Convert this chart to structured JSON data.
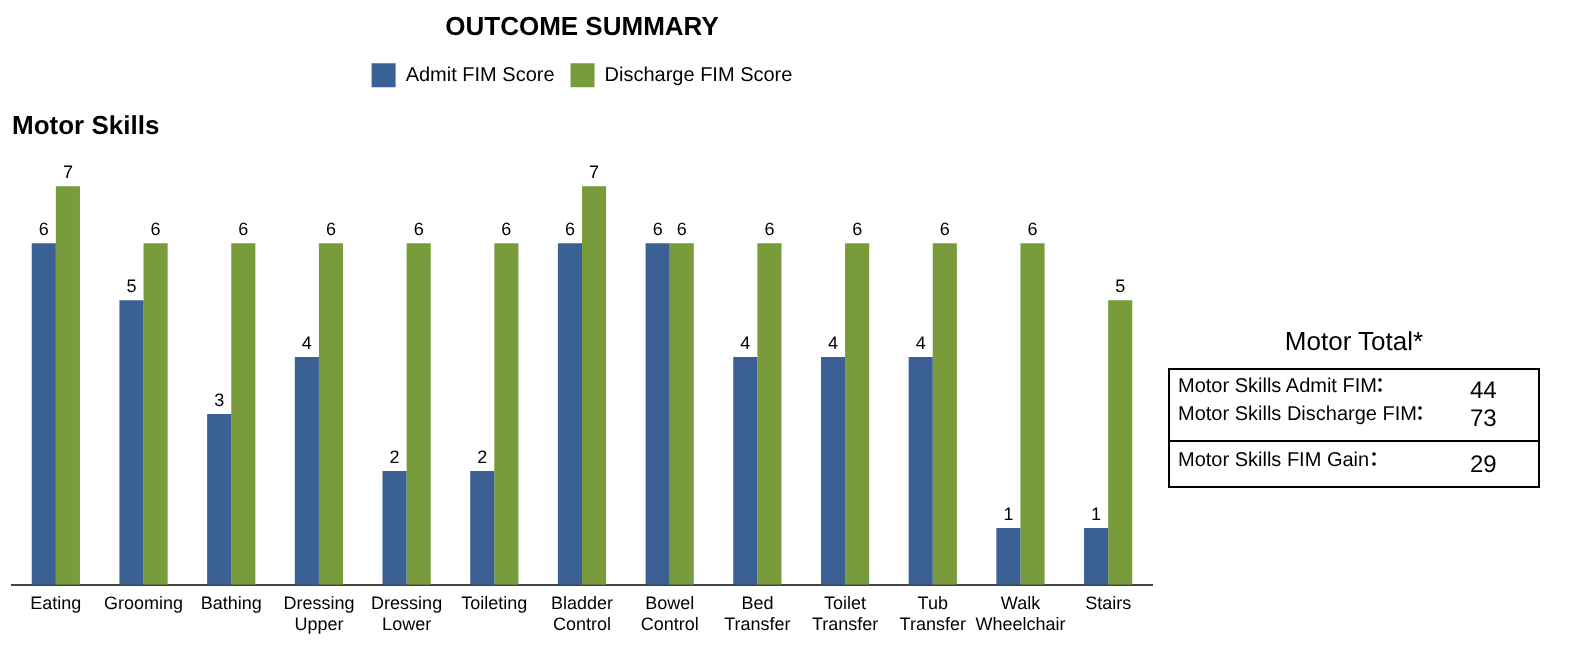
{
  "chart_data": [
    {
      "type": "bar",
      "title": "OUTCOME SUMMARY",
      "subtitle": "Motor Skills",
      "categories": [
        "Eating",
        "Grooming",
        "Bathing",
        "Dressing Upper",
        "Dressing Lower",
        "Toileting",
        "Bladder Control",
        "Bowel Control",
        "Bed Transfer",
        "Toilet Transfer",
        "Tub Transfer",
        "Walk Wheelchair",
        "Stairs"
      ],
      "series": [
        {
          "name": "Admit FIM Score",
          "color": "#3b6094",
          "values": [
            6,
            5,
            3,
            4,
            2,
            2,
            6,
            6,
            4,
            4,
            4,
            1,
            1
          ]
        },
        {
          "name": "Discharge FIM Score",
          "color": "#789b3c",
          "values": [
            7,
            6,
            6,
            6,
            6,
            6,
            7,
            6,
            6,
            6,
            6,
            6,
            5
          ]
        }
      ],
      "data_labels": true,
      "grid": false,
      "legend": "top",
      "tick_labels": "x"
    },
    {
      "type": "other",
      "title": "Motor Total*",
      "categories": [
        "Motor Skills Admit FIM",
        "Motor Skills Discharge FIM",
        "Motor Skills FIM Gain"
      ],
      "values": [
        44,
        73,
        29
      ],
      "data_labels": true
    }
  ]
}
